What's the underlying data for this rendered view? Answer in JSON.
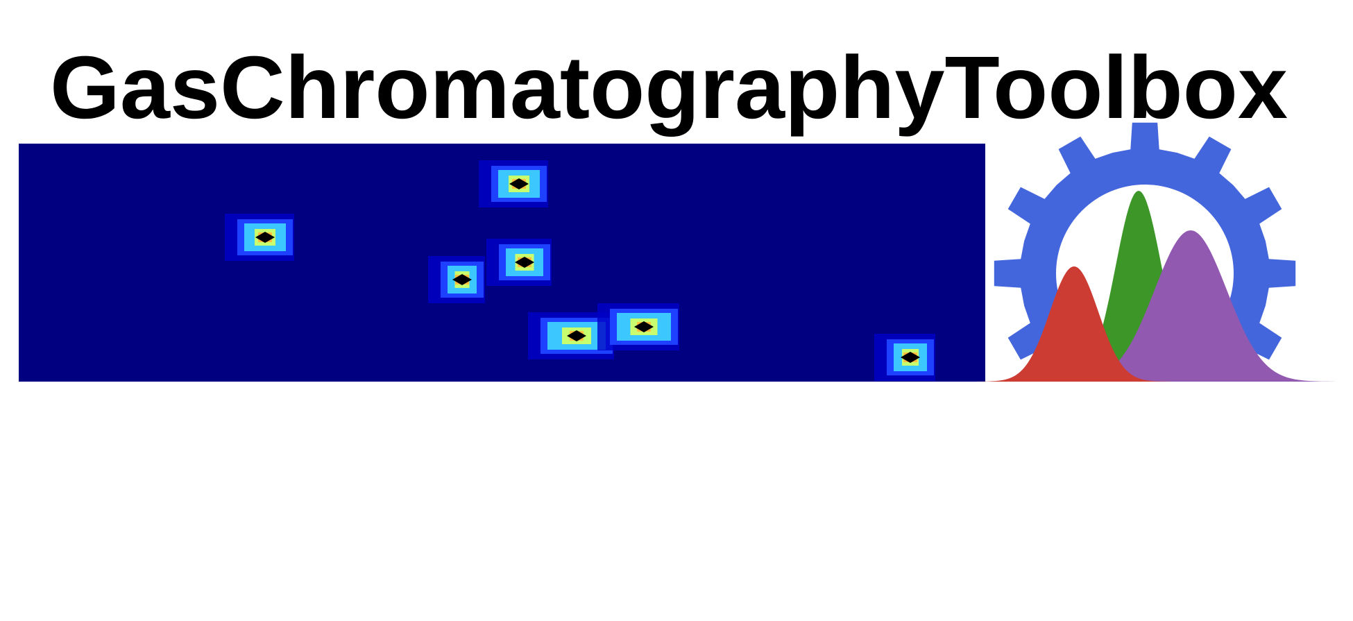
{
  "title": "GasChromatographyToolbox"
}
